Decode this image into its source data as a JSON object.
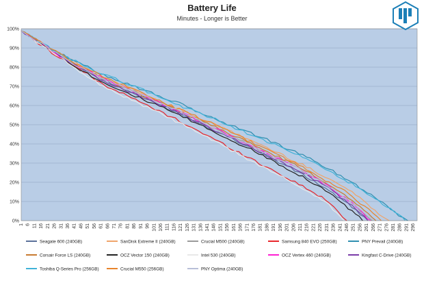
{
  "chart_data": {
    "type": "line",
    "title": "Battery Life",
    "subtitle": "Minutes - Longer is Better",
    "xlabel": "",
    "ylabel": "",
    "x_range": [
      1,
      299
    ],
    "x_tick_labels": [
      "1",
      "6",
      "11",
      "16",
      "21",
      "26",
      "31",
      "36",
      "41",
      "46",
      "51",
      "56",
      "61",
      "66",
      "71",
      "76",
      "81",
      "86",
      "91",
      "96",
      "101",
      "106",
      "111",
      "116",
      "121",
      "126",
      "131",
      "136",
      "141",
      "146",
      "151",
      "156",
      "161",
      "166",
      "171",
      "176",
      "181",
      "186",
      "191",
      "196",
      "201",
      "206",
      "211",
      "216",
      "221",
      "226",
      "231",
      "236",
      "241",
      "246",
      "251",
      "256",
      "261",
      "266",
      "271",
      "276",
      "281",
      "286",
      "291",
      "296"
    ],
    "y_range": [
      0,
      100
    ],
    "y_tick_labels": [
      "0%",
      "10%",
      "20%",
      "30%",
      "40%",
      "50%",
      "60%",
      "70%",
      "80%",
      "90%",
      "100%"
    ],
    "grid": "horizontal",
    "legend_position": "bottom",
    "plot_background": "#b9cde6",
    "series": [
      {
        "name": "Seagate 600 (240GB)",
        "color": "#5a6f9a",
        "x": [
          1,
          15,
          30,
          45,
          60,
          90,
          120,
          150,
          180,
          210,
          230,
          250,
          262
        ],
        "y": [
          99,
          93,
          86,
          80,
          74,
          65,
          56,
          46,
          36,
          25,
          17,
          7,
          0
        ]
      },
      {
        "name": "SanDisk Extreme II (240GB)",
        "color": "#f0a46a",
        "x": [
          1,
          15,
          30,
          45,
          60,
          90,
          120,
          150,
          180,
          210,
          230,
          250,
          270,
          278
        ],
        "y": [
          99,
          93,
          87,
          81,
          75,
          67,
          58,
          49,
          40,
          30,
          23,
          15,
          4,
          0
        ]
      },
      {
        "name": "Crucial M500 (240GB)",
        "color": "#9a9a9a",
        "x": [
          1,
          15,
          30,
          45,
          60,
          90,
          120,
          150,
          180,
          210,
          230,
          250,
          265
        ],
        "y": [
          99,
          93,
          86,
          80,
          75,
          66,
          57,
          47,
          37,
          27,
          19,
          9,
          0
        ]
      },
      {
        "name": "Samsung 840 EVO (250GB)",
        "color": "#e8262b",
        "x": [
          1,
          15,
          30,
          45,
          60,
          90,
          120,
          150,
          180,
          210,
          230,
          246
        ],
        "y": [
          99,
          92,
          85,
          79,
          72,
          62,
          52,
          41,
          30,
          19,
          11,
          0
        ]
      },
      {
        "name": "PNY Prevail (240GB)",
        "color": "#2f8fb0",
        "x": [
          1,
          15,
          30,
          45,
          60,
          90,
          120,
          150,
          180,
          210,
          230,
          250,
          270,
          285,
          292
        ],
        "y": [
          99,
          93,
          87,
          82,
          77,
          69,
          61,
          52,
          44,
          35,
          28,
          20,
          11,
          3,
          0
        ]
      },
      {
        "name": "Corsair Force LS (240GB)",
        "color": "#c87a30",
        "x": [
          1,
          15,
          30,
          45,
          60,
          90,
          120,
          150,
          180,
          210,
          230,
          250,
          268
        ],
        "y": [
          99,
          93,
          86,
          80,
          75,
          66,
          57,
          48,
          38,
          28,
          20,
          11,
          0
        ]
      },
      {
        "name": "OCZ Vector 150 (240GB)",
        "color": "#222222",
        "x": [
          1,
          15,
          30,
          45,
          60,
          90,
          120,
          150,
          180,
          210,
          230,
          250,
          258
        ],
        "y": [
          99,
          93,
          86,
          79,
          73,
          64,
          55,
          45,
          35,
          24,
          16,
          5,
          0
        ]
      },
      {
        "name": "Intel 530 (240GB)",
        "color": "#e8e8e8",
        "x": [
          1,
          15,
          30,
          45,
          60,
          90,
          120,
          150,
          180,
          210,
          230,
          244
        ],
        "y": [
          99,
          92,
          85,
          78,
          71,
          61,
          51,
          40,
          29,
          18,
          10,
          0
        ]
      },
      {
        "name": "OCZ Vertex 460 (240GB)",
        "color": "#ff1fd2",
        "x": [
          1,
          15,
          30,
          45,
          60,
          90,
          120,
          150,
          180,
          210,
          230,
          250,
          264
        ],
        "y": [
          99,
          93,
          86,
          80,
          75,
          66,
          57,
          47,
          37,
          27,
          19,
          9,
          0
        ]
      },
      {
        "name": "Kingfast C-Drive (240GB)",
        "color": "#7a3ca8",
        "x": [
          1,
          15,
          30,
          45,
          60,
          90,
          120,
          150,
          180,
          210,
          230,
          250,
          262
        ],
        "y": [
          99,
          93,
          86,
          80,
          74,
          65,
          56,
          46,
          36,
          26,
          18,
          8,
          0
        ]
      },
      {
        "name": "Toshiba Q-Series Pro (256GB)",
        "color": "#3fb2d8",
        "x": [
          1,
          15,
          30,
          45,
          60,
          90,
          120,
          150,
          180,
          210,
          230,
          250,
          270,
          285,
          290
        ],
        "y": [
          99,
          93,
          87,
          82,
          77,
          69,
          60,
          52,
          43,
          34,
          27,
          19,
          10,
          3,
          0
        ]
      },
      {
        "name": "Crucial M550 (256GB)",
        "color": "#e8842a",
        "x": [
          1,
          15,
          30,
          45,
          60,
          90,
          120,
          150,
          180,
          210,
          230,
          250,
          272
        ],
        "y": [
          99,
          93,
          87,
          81,
          76,
          67,
          58,
          49,
          39,
          29,
          21,
          13,
          0
        ]
      },
      {
        "name": "PNY Optima (240GB)",
        "color": "#b8bfd8",
        "x": [
          1,
          15,
          30,
          45,
          60,
          90,
          120,
          150,
          180,
          210,
          230,
          250,
          266
        ],
        "y": [
          99,
          93,
          86,
          80,
          75,
          66,
          57,
          47,
          37,
          27,
          19,
          9,
          0
        ]
      }
    ]
  }
}
